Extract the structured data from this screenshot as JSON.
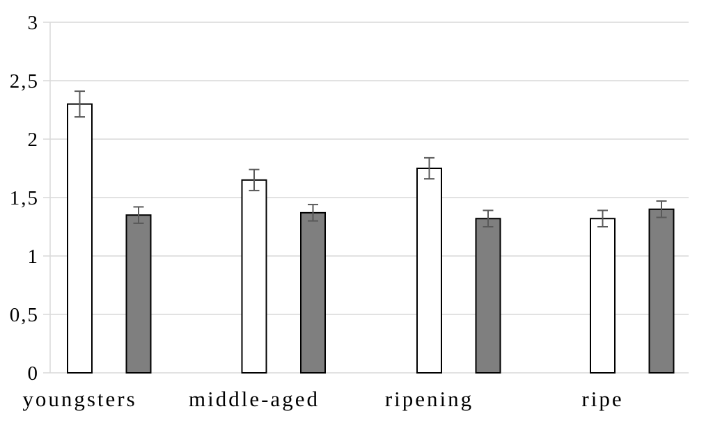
{
  "chart_data": {
    "type": "bar",
    "title": "",
    "xlabel": "",
    "ylabel": "",
    "categories": [
      "youngsters",
      "middle-aged",
      "ripening",
      "ripe"
    ],
    "series": [
      {
        "name": "white-bars",
        "fill": "#ffffff",
        "values": [
          2.3,
          1.65,
          1.75,
          1.32
        ],
        "errors": [
          0.11,
          0.09,
          0.09,
          0.07
        ]
      },
      {
        "name": "gray-bars",
        "fill": "#7f7f7f",
        "values": [
          1.35,
          1.37,
          1.32,
          1.4
        ],
        "errors": [
          0.07,
          0.07,
          0.07,
          0.07
        ]
      }
    ],
    "ylim": [
      0,
      3
    ],
    "ytick_step": 0.5,
    "ytick_labels": [
      "0",
      "0,5",
      "1",
      "1,5",
      "2",
      "2,5",
      "3"
    ],
    "decimal_separator": ",",
    "grid": true,
    "legend": false,
    "error_bars": true,
    "colors": {
      "grid_line": "#d9d9d9",
      "axis_line": "#d9d9d9",
      "bar_border": "#000000",
      "error_bar": "#595959",
      "text": "#000000",
      "background": "#ffffff"
    }
  }
}
